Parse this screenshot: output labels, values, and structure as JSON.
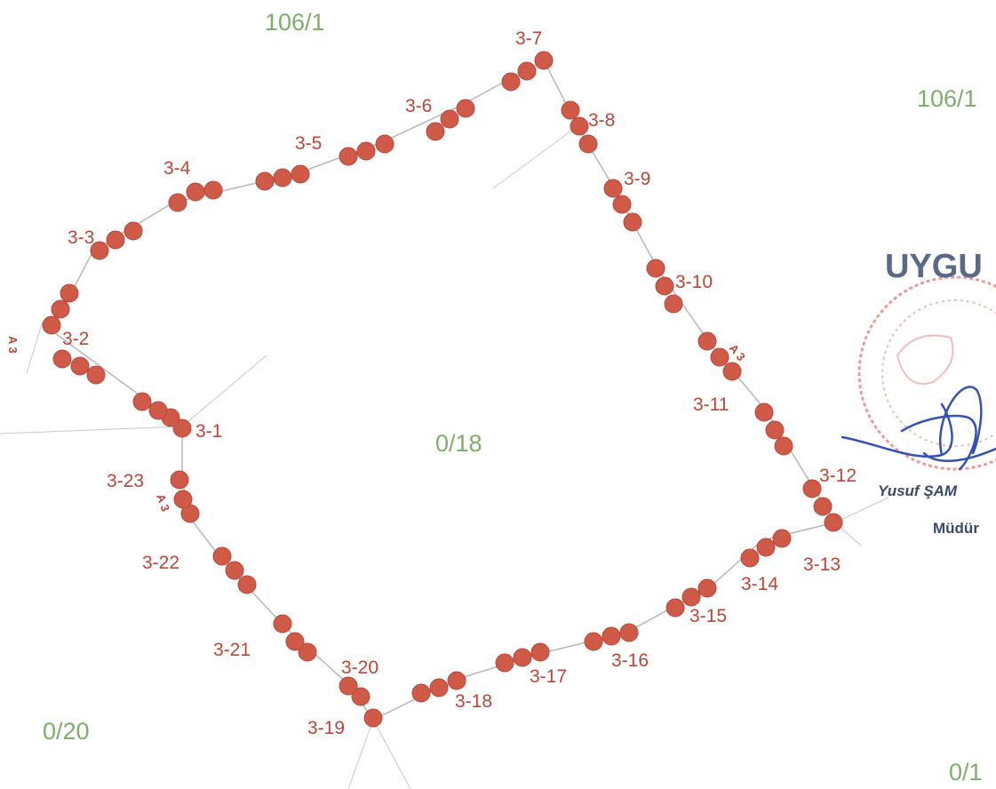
{
  "colors": {
    "dot": "#cf5a48",
    "dot_stroke": "#b8473a",
    "vertex_label": "#b8473a",
    "boundary": "#b7b7b7",
    "parcel_label": "#7fae6a",
    "stamp": "#e37b7b",
    "signature": "#3451b5",
    "stamp_text": "#5a6a86",
    "side_mark": "#b8473a"
  },
  "parcels": {
    "top_left": "106/1",
    "top_right": "106/1",
    "center": "0/18",
    "bottom_left": "0/20",
    "bottom_right": "0/1"
  },
  "vertices": [
    {
      "id": "3-1",
      "label": "3-1"
    },
    {
      "id": "3-2",
      "label": "3-2"
    },
    {
      "id": "3-3",
      "label": "3-3"
    },
    {
      "id": "3-4",
      "label": "3-4"
    },
    {
      "id": "3-5",
      "label": "3-5"
    },
    {
      "id": "3-6",
      "label": "3-6"
    },
    {
      "id": "3-7",
      "label": "3-7"
    },
    {
      "id": "3-8",
      "label": "3-8"
    },
    {
      "id": "3-9",
      "label": "3-9"
    },
    {
      "id": "3-10",
      "label": "3-10"
    },
    {
      "id": "3-11",
      "label": "3-11"
    },
    {
      "id": "3-12",
      "label": "3-12"
    },
    {
      "id": "3-13",
      "label": "3-13"
    },
    {
      "id": "3-14",
      "label": "3-14"
    },
    {
      "id": "3-15",
      "label": "3-15"
    },
    {
      "id": "3-16",
      "label": "3-16"
    },
    {
      "id": "3-17",
      "label": "3-17"
    },
    {
      "id": "3-18",
      "label": "3-18"
    },
    {
      "id": "3-19",
      "label": "3-19"
    },
    {
      "id": "3-20",
      "label": "3-20"
    },
    {
      "id": "3-21",
      "label": "3-21"
    },
    {
      "id": "3-22",
      "label": "3-22"
    },
    {
      "id": "3-23",
      "label": "3-23"
    }
  ],
  "side_marks": [
    "A 3",
    "A 3",
    "A 3"
  ],
  "stamp": {
    "text": "UYGU",
    "signer_name": "Yusuf ŞAM",
    "signer_title": "Müdür"
  }
}
